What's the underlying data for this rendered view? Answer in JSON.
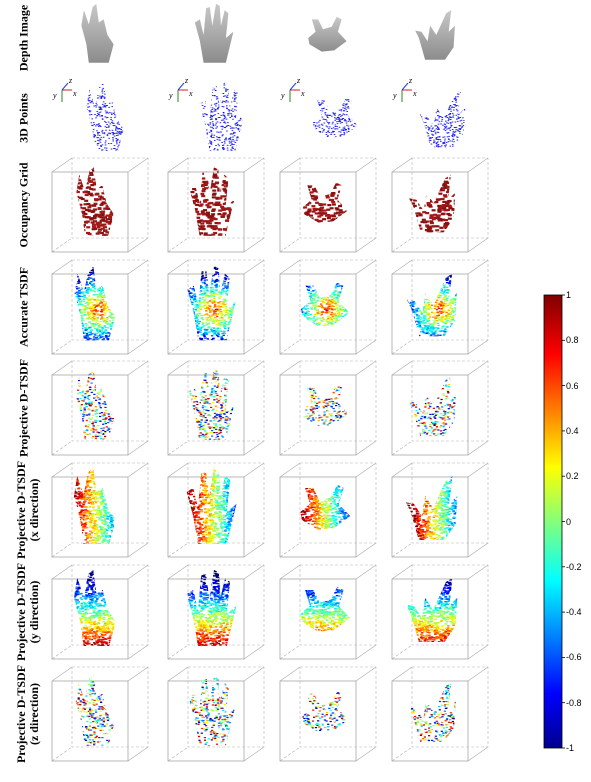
{
  "figure": {
    "rows": [
      {
        "label": "Depth Image",
        "line2": ""
      },
      {
        "label": "3D Points",
        "line2": ""
      },
      {
        "label": "Occupancy Grid",
        "line2": ""
      },
      {
        "label": "Accurate TSDF",
        "line2": ""
      },
      {
        "label": "Projective D-TSDF",
        "line2": ""
      },
      {
        "label": "Projective D-TSDF",
        "line2": "(x direction)"
      },
      {
        "label": "Projective D-TSDF",
        "line2": "(y direction)"
      },
      {
        "label": "Projective D-TSDF",
        "line2": "(z direction)"
      }
    ],
    "axes_labels": {
      "x": "x",
      "y": "y",
      "z": "z"
    },
    "colorbar": {
      "ticks": [
        "1",
        "0.8",
        "0.6",
        "0.4",
        "0.2",
        "0",
        "-0.2",
        "-0.4",
        "-0.6",
        "-0.8",
        "-1"
      ],
      "colors": [
        "#800000",
        "#ff0000",
        "#ffff00",
        "#00ffff",
        "#0000ff",
        "#00008f"
      ]
    },
    "columns": 4
  }
}
